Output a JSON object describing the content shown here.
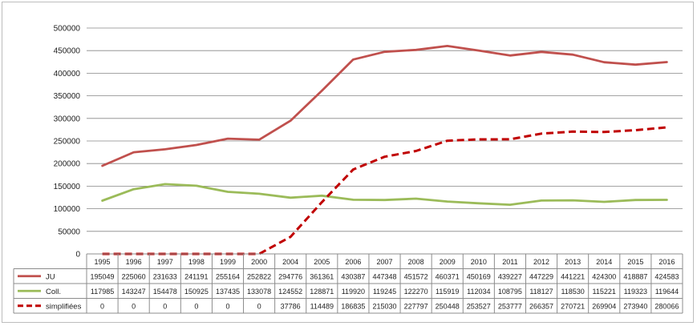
{
  "chart_data": {
    "type": "line",
    "title": "",
    "xlabel": "",
    "ylabel": "",
    "ylim": [
      0,
      500000
    ],
    "y_ticks": [
      "0",
      "50000",
      "100000",
      "150000",
      "200000",
      "250000",
      "300000",
      "350000",
      "400000",
      "450000",
      "500000"
    ],
    "grid": true,
    "legend": "data-table",
    "categories": [
      "1995",
      "1996",
      "1997",
      "1998",
      "1999",
      "2000",
      "2004",
      "2005",
      "2006",
      "2007",
      "2008",
      "2009",
      "2010",
      "2011",
      "2012",
      "2013",
      "2014",
      "2015",
      "2016"
    ],
    "series": [
      {
        "name": "JU",
        "color": "#c0504d",
        "dash": "solid",
        "values": [
          195049,
          225060,
          231633,
          241191,
          255164,
          252822,
          294776,
          361361,
          430387,
          447348,
          451572,
          460371,
          450169,
          439227,
          447229,
          441221,
          424300,
          418887,
          424583
        ]
      },
      {
        "name": "Coll.",
        "color": "#9bbb59",
        "dash": "solid",
        "values": [
          117985,
          143247,
          154478,
          150925,
          137435,
          133078,
          124552,
          128871,
          119920,
          119245,
          122270,
          115919,
          112034,
          108795,
          118127,
          118530,
          115221,
          119323,
          119644
        ]
      },
      {
        "name": "simplifiées",
        "color": "#c00000",
        "dash": "dashed",
        "values": [
          0,
          0,
          0,
          0,
          0,
          0,
          37786,
          114489,
          186835,
          215030,
          227797,
          250448,
          253527,
          253777,
          266357,
          270721,
          269904,
          273940,
          280066
        ]
      }
    ]
  }
}
